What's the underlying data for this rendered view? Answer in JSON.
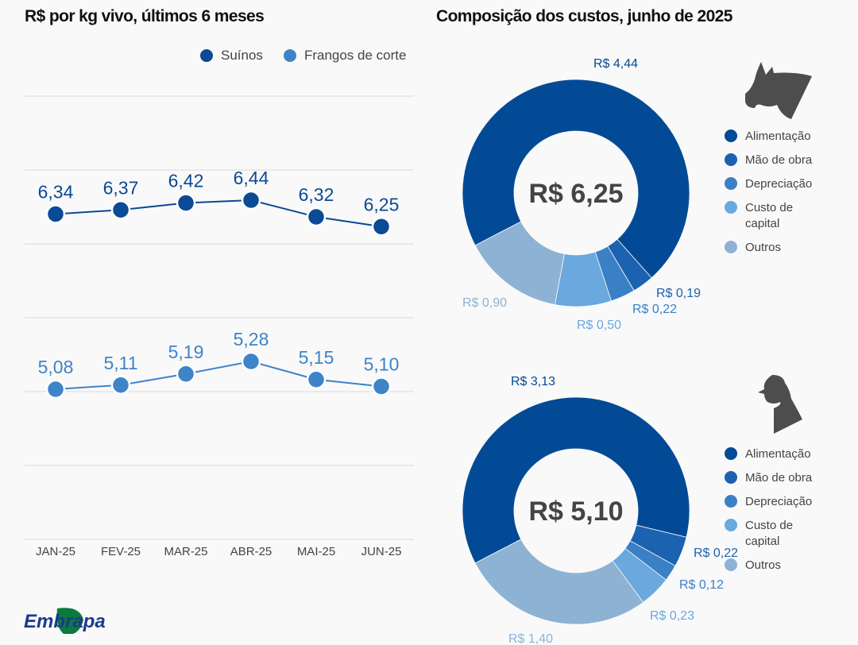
{
  "titles": {
    "left": "R$ por kg vivo, últimos 6 meses",
    "right": "Composição dos custos, junho de 2025"
  },
  "colors": {
    "suinos": "#0b4a94",
    "frangos": "#3d84c8",
    "gridline": "#d9d9d9",
    "alimentacao": "#034a96",
    "mao_de_obra": "#1b62b0",
    "depreciacao": "#3a80c6",
    "custo_de_capital": "#6aa8de",
    "outros": "#8db2d4",
    "center_text": "#444444",
    "icon": "#4d4d4d"
  },
  "logo": {
    "text": "Embrapa"
  },
  "chart_data": [
    {
      "type": "line",
      "title": "R$ por kg vivo, últimos 6 meses",
      "xlabel": "",
      "ylabel": "",
      "grid": true,
      "legend": {
        "placement": "top-right",
        "entries": [
          "Suínos",
          "Frangos de corte"
        ]
      },
      "categories": [
        "JAN-25",
        "FEV-25",
        "MAR-25",
        "ABR-25",
        "MAI-25",
        "JUN-25"
      ],
      "series": [
        {
          "name": "Suínos",
          "values": [
            6.34,
            6.37,
            6.42,
            6.44,
            6.32,
            6.25
          ],
          "labels": [
            "6,34",
            "6,37",
            "6,42",
            "6,44",
            "6,32",
            "6,25"
          ]
        },
        {
          "name": "Frangos de corte",
          "values": [
            5.08,
            5.11,
            5.19,
            5.28,
            5.15,
            5.1
          ],
          "labels": [
            "5,08",
            "5,11",
            "5,19",
            "5,28",
            "5,15",
            "5,10"
          ]
        }
      ]
    },
    {
      "type": "pie",
      "title": "Composição dos custos, junho de 2025 — Suínos",
      "icon": "pig-icon",
      "center_label": "R$ 6,25",
      "total": 6.25,
      "legend": {
        "placement": "right",
        "entries": [
          "Alimentação",
          "Mão de obra",
          "Depreciação",
          "Custo de capital",
          "Outros"
        ]
      },
      "slices": [
        {
          "name": "Alimentação",
          "value": 4.44,
          "label": "R$ 4,44"
        },
        {
          "name": "Mão de obra",
          "value": 0.19,
          "label": "R$ 0,19"
        },
        {
          "name": "Depreciação",
          "value": 0.22,
          "label": "R$ 0,22"
        },
        {
          "name": "Custo de capital",
          "value": 0.5,
          "label": "R$ 0,50"
        },
        {
          "name": "Outros",
          "value": 0.9,
          "label": "R$ 0,90"
        }
      ]
    },
    {
      "type": "pie",
      "title": "Composição dos custos, junho de 2025 — Frangos de corte",
      "icon": "chicken-icon",
      "center_label": "R$ 5,10",
      "total": 5.1,
      "legend": {
        "placement": "right",
        "entries": [
          "Alimentação",
          "Mão de obra",
          "Depreciação",
          "Custo de capital",
          "Outros"
        ]
      },
      "slices": [
        {
          "name": "Alimentação",
          "value": 3.13,
          "label": "R$ 3,13"
        },
        {
          "name": "Mão de obra",
          "value": 0.22,
          "label": "R$ 0,22"
        },
        {
          "name": "Depreciação",
          "value": 0.12,
          "label": "R$ 0,12"
        },
        {
          "name": "Custo de capital",
          "value": 0.23,
          "label": "R$ 0,23"
        },
        {
          "name": "Outros",
          "value": 1.4,
          "label": "R$ 1,40"
        }
      ]
    }
  ]
}
